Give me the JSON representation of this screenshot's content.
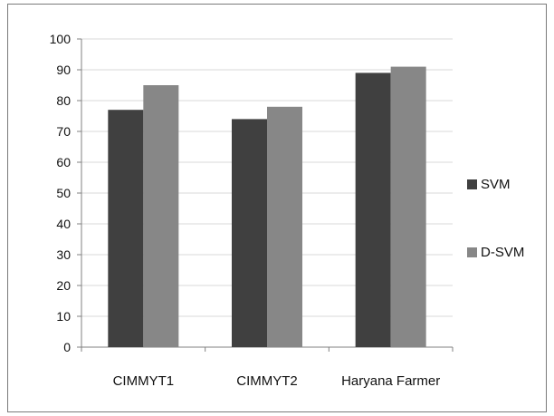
{
  "chart_data": {
    "type": "bar",
    "categories": [
      "CIMMYT1",
      "CIMMYT2",
      "Haryana Farmer"
    ],
    "series": [
      {
        "name": "SVM",
        "values": [
          77,
          74,
          89
        ],
        "color": "#404040"
      },
      {
        "name": "D-SVM",
        "values": [
          85,
          78,
          91
        ],
        "color": "#878787"
      }
    ],
    "title": "",
    "xlabel": "",
    "ylabel": "",
    "ylim": [
      0,
      100
    ],
    "yticks": [
      0,
      10,
      20,
      30,
      40,
      50,
      60,
      70,
      80,
      90,
      100
    ],
    "grid": true,
    "legend_position": "right"
  }
}
